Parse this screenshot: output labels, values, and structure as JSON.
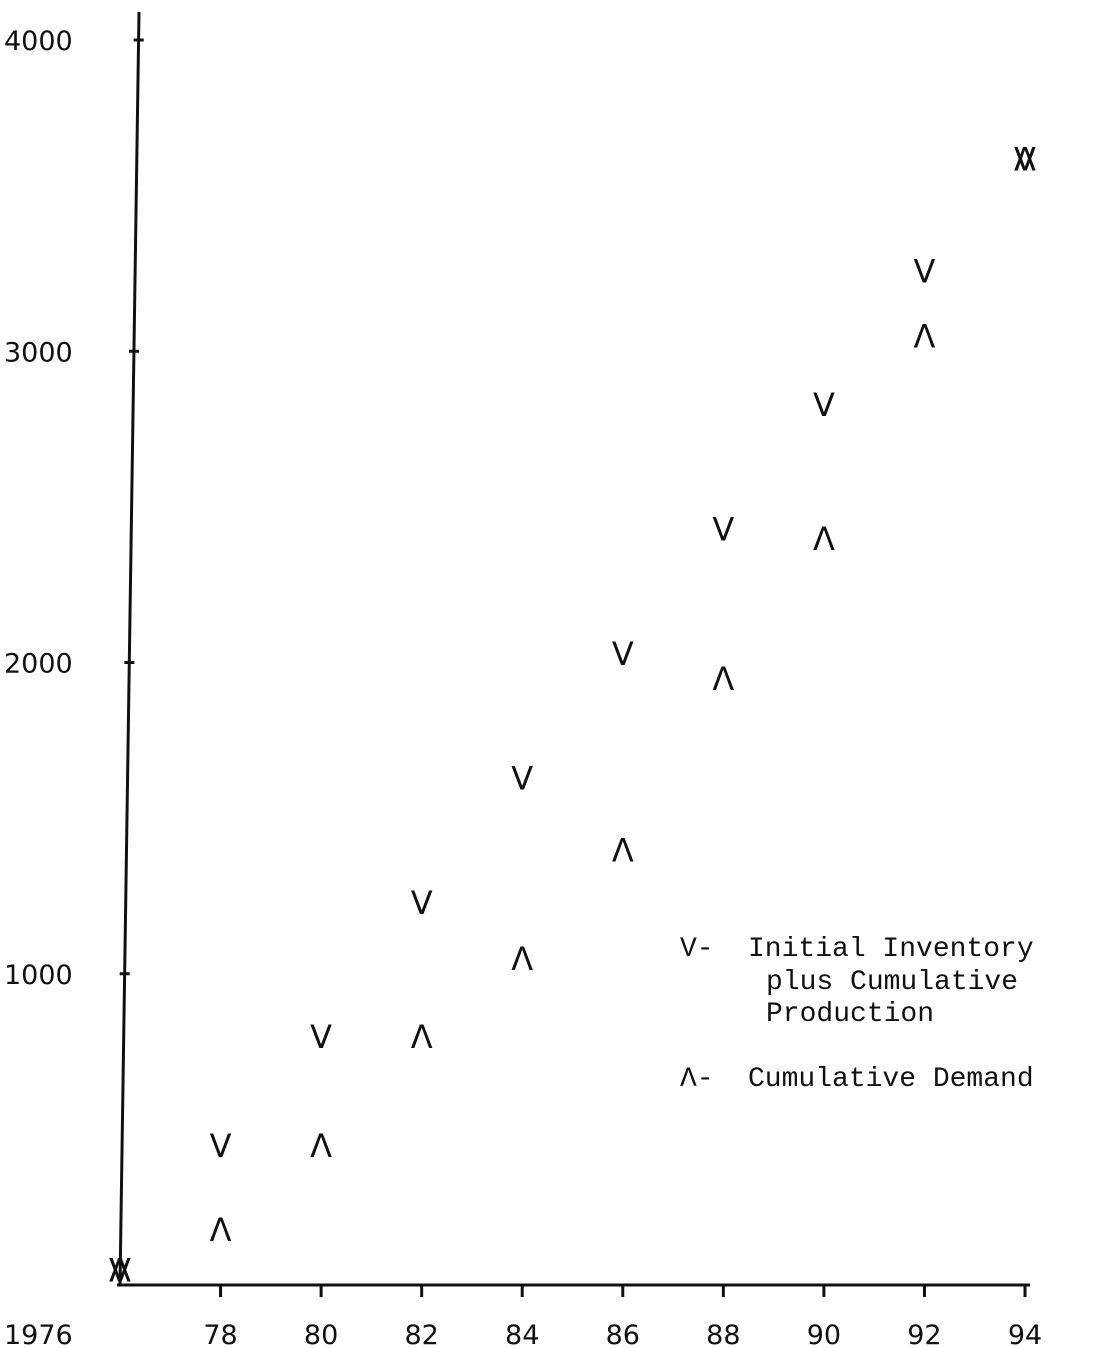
{
  "chart_data": {
    "type": "scatter",
    "title": "",
    "xlabel": "",
    "ylabel": "",
    "xlim": [
      1976,
      1994
    ],
    "ylim": [
      0,
      4000
    ],
    "grid": false,
    "legend_position": "right-middle",
    "x_tick_labels": [
      "1976",
      "78",
      "80",
      "82",
      "84",
      "86",
      "88",
      "90",
      "92",
      "94"
    ],
    "y_tick_labels": [
      "4000",
      "3000",
      "2000",
      "1000"
    ],
    "x_ticks": [
      1976,
      1978,
      1980,
      1982,
      1984,
      1986,
      1988,
      1990,
      1992,
      1994
    ],
    "y_ticks": [
      4000,
      3000,
      2000,
      1000
    ],
    "series": [
      {
        "marker": "V",
        "name": "Initial Inventory plus Cumulative Production",
        "x": [
          1976,
          1978,
          1980,
          1982,
          1984,
          1986,
          1988,
          1990,
          1992,
          1994
        ],
        "y": [
          50,
          450,
          800,
          1230,
          1630,
          2030,
          2430,
          2830,
          3260,
          3620
        ]
      },
      {
        "marker": "Λ",
        "name": "Cumulative Demand",
        "x": [
          1976,
          1978,
          1980,
          1982,
          1984,
          1986,
          1988,
          1990,
          1992,
          1994
        ],
        "y": [
          50,
          180,
          450,
          800,
          1050,
          1400,
          1950,
          2400,
          3050,
          3620
        ]
      }
    ],
    "legend": {
      "v_symbol": "V-",
      "v_lines": [
        "Initial Inventory",
        "plus Cumulative",
        "Production"
      ],
      "a_symbol": "Λ-",
      "a_lines": [
        "Cumulative Demand"
      ]
    }
  }
}
